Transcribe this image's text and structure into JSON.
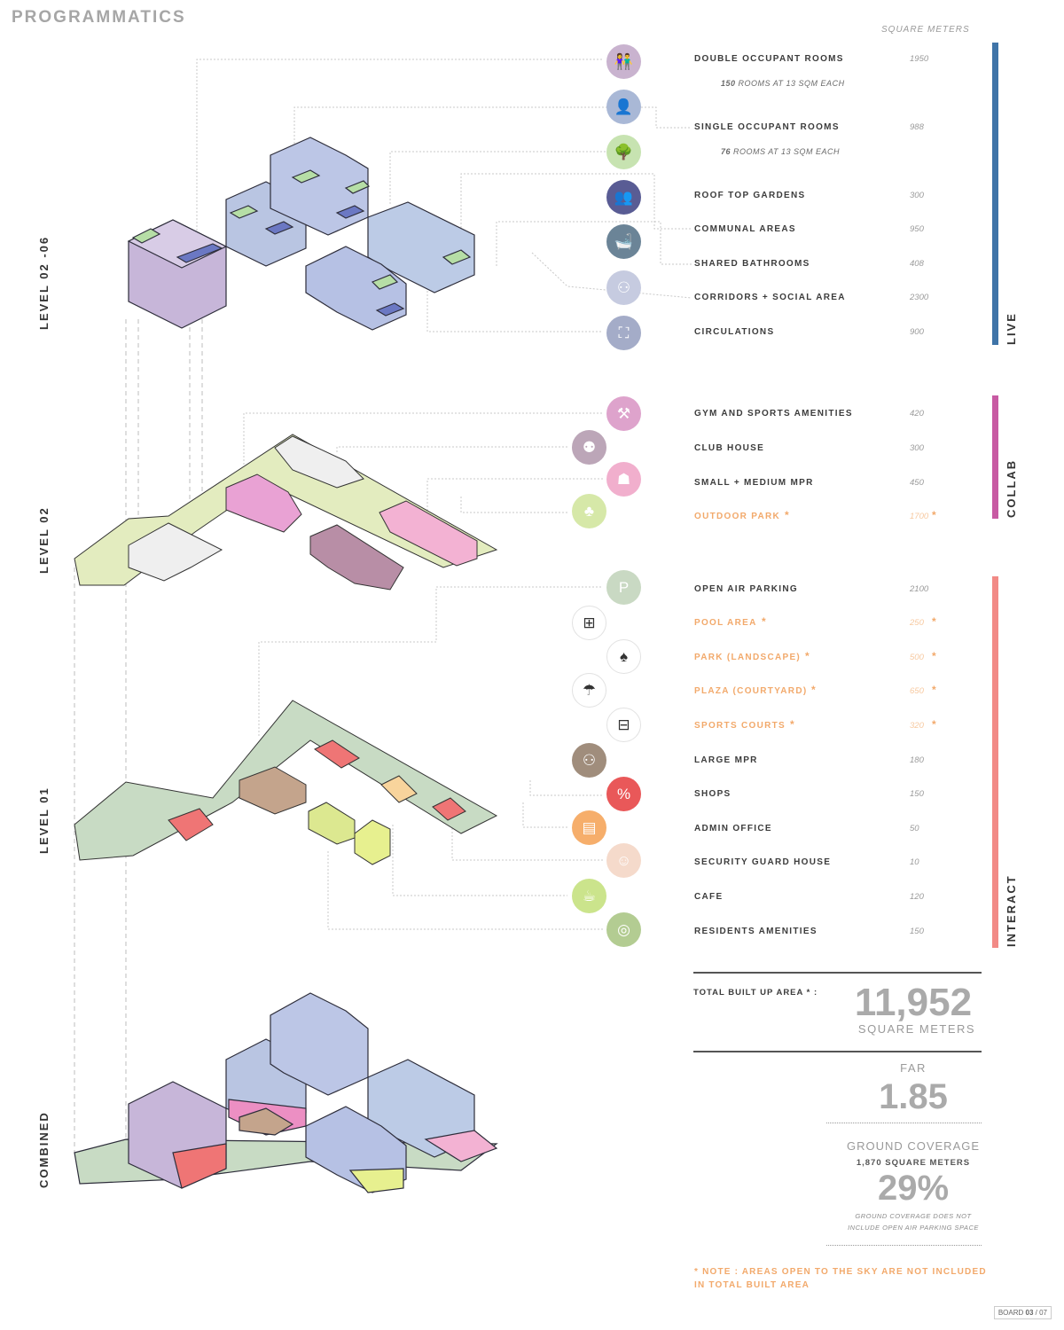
{
  "title": "PROGRAMMATICS",
  "unit_header": "SQUARE METERS",
  "levels": [
    "LEVEL 02 -06",
    "LEVEL 02",
    "LEVEL 01",
    "COMBINED"
  ],
  "categories": {
    "live": {
      "label": "LIVE",
      "color": "#3f74a8"
    },
    "collab": {
      "label": "COLLAB",
      "color": "#c85aa3"
    },
    "interact": {
      "label": "INTERACT",
      "color": "#f28a86"
    }
  },
  "live_rows": [
    {
      "label": "DOUBLE OCCUPANT ROOMS",
      "value": "1950",
      "sub_num": "150",
      "sub_text": "ROOMS AT 13 SQM EACH",
      "icon": "couple-icon",
      "icon_color": "#c9b3cf"
    },
    {
      "label": "SINGLE OCCUPANT ROOMS",
      "value": "988",
      "sub_num": "76",
      "sub_text": "ROOMS AT 13 SQM EACH",
      "icon": "person-icon",
      "icon_color": "#a9b8d6"
    },
    {
      "label": "ROOF TOP GARDENS",
      "value": "300",
      "icon": "tree-icon",
      "icon_color": "#c7e3b1"
    },
    {
      "label": "COMMUNAL AREAS",
      "value": "950",
      "icon": "group-icon",
      "icon_color": "#595c94"
    },
    {
      "label": "SHARED BATHROOMS",
      "value": "408",
      "icon": "bathtub-icon",
      "icon_color": "#6b8497"
    },
    {
      "label": "CORRIDORS + SOCIAL AREA",
      "value": "2300",
      "icon": "social-icon",
      "icon_color": "#c6cbe0"
    },
    {
      "label": "CIRCULATIONS",
      "value": "900",
      "icon": "stairs-icon",
      "icon_color": "#a4acc8"
    }
  ],
  "collab_rows": [
    {
      "label": "GYM AND SPORTS AMENITIES",
      "value": "420",
      "open": false,
      "icon": "dumbbell-icon",
      "icon_color": "#dea3cc"
    },
    {
      "label": "CLUB HOUSE",
      "value": "300",
      "open": false,
      "icon": "clubhouse-icon",
      "icon_color": "#bca6b8"
    },
    {
      "label": "SMALL + MEDIUM MPR",
      "value": "450",
      "open": false,
      "icon": "meeting-icon",
      "icon_color": "#f1afcd"
    },
    {
      "label": "OUTDOOR PARK",
      "value": "1700",
      "open": true,
      "icon": "park-icon",
      "icon_color": "#d6e8a8"
    }
  ],
  "interact_rows": [
    {
      "label": "OPEN AIR PARKING",
      "value": "2100",
      "open": false,
      "icon": "parking-icon",
      "icon_color": "#c9d9c3"
    },
    {
      "label": "POOL AREA",
      "value": "250",
      "open": true,
      "icon": "pool-ladder-icon",
      "icon_color": "line"
    },
    {
      "label": "PARK (LANDSCAPE)",
      "value": "500",
      "open": true,
      "icon": "trees-icon",
      "icon_color": "line"
    },
    {
      "label": "PLAZA (COURTYARD)",
      "value": "650",
      "open": true,
      "icon": "umbrella-table-icon",
      "icon_color": "line"
    },
    {
      "label": "SPORTS COURTS",
      "value": "320",
      "open": true,
      "icon": "court-icon",
      "icon_color": "line"
    },
    {
      "label": "LARGE MPR",
      "value": "180",
      "open": false,
      "icon": "audience-icon",
      "icon_color": "#a08d7c"
    },
    {
      "label": "SHOPS",
      "value": "150",
      "open": false,
      "icon": "shopping-bag-icon",
      "icon_color": "#e95859"
    },
    {
      "label": "ADMIN OFFICE",
      "value": "50",
      "open": false,
      "icon": "office-icon",
      "icon_color": "#f6ae6b"
    },
    {
      "label": "SECURITY GUARD HOUSE",
      "value": "10",
      "open": false,
      "icon": "guard-icon",
      "icon_color": "#f5dacb"
    },
    {
      "label": "CAFE",
      "value": "120",
      "open": false,
      "icon": "coffee-icon",
      "icon_color": "#cbe48c"
    },
    {
      "label": "RESIDENTS AMENITIES",
      "value": "150",
      "open": false,
      "icon": "laundry-icon",
      "icon_color": "#b3cc92"
    }
  ],
  "summary": {
    "total_label": "TOTAL BUILT UP AREA * :",
    "total_value": "11,952",
    "total_unit": "SQUARE METERS",
    "far_label": "FAR",
    "far_value": "1.85",
    "gc_label": "GROUND COVERAGE",
    "gc_area": "1,870 SQUARE METERS",
    "gc_value": "29%",
    "gc_note_1": "GROUND COVERAGE DOES NOT",
    "gc_note_2": "INCLUDE OPEN AIR PARKING SPACE"
  },
  "note": "* NOTE : AREAS OPEN TO THE SKY ARE NOT INCLUDED IN TOTAL BUILT AREA",
  "board": {
    "prefix": "BOARD",
    "num": "03",
    "total": "/ 07"
  }
}
